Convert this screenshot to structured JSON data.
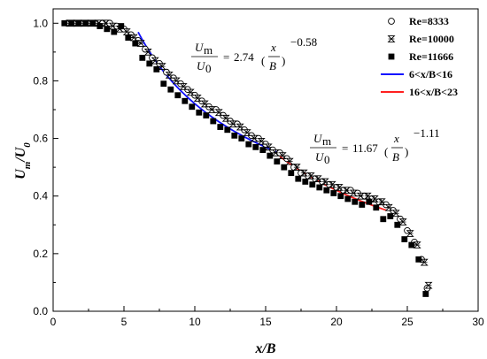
{
  "chart_data": {
    "type": "scatter",
    "xlabel": "x/B",
    "ylabel": "U_m/U_0",
    "xlim": [
      0,
      30
    ],
    "ylim": [
      0,
      1.05
    ],
    "xticks": [
      "0",
      "5",
      "10",
      "15",
      "20",
      "25",
      "30"
    ],
    "yticks": [
      "0.0",
      "0.2",
      "0.4",
      "0.6",
      "0.8",
      "1.0"
    ],
    "grid": false,
    "legend_position": "top-right",
    "series": [
      {
        "name": "Re=8333",
        "marker": "open-circle",
        "color": "#000000",
        "x": [
          1.0,
          1.5,
          2.0,
          2.5,
          3.0,
          3.5,
          4.0,
          4.5,
          5.0,
          5.5,
          6.0,
          6.5,
          7.0,
          7.5,
          8.0,
          8.5,
          9.0,
          9.5,
          10.0,
          10.5,
          11.0,
          11.5,
          12.0,
          12.5,
          13.0,
          13.5,
          14.0,
          14.5,
          15.0,
          15.5,
          16.0,
          16.5,
          17.0,
          17.5,
          18.0,
          18.5,
          19.0,
          19.5,
          20.0,
          20.5,
          21.0,
          21.5,
          22.0,
          22.5,
          23.0,
          23.5,
          24.0,
          24.5,
          25.0,
          25.5,
          26.0,
          26.4
        ],
        "y": [
          1.0,
          1.0,
          1.0,
          1.0,
          1.0,
          1.0,
          1.0,
          0.99,
          0.98,
          0.96,
          0.94,
          0.91,
          0.88,
          0.86,
          0.83,
          0.81,
          0.79,
          0.77,
          0.75,
          0.73,
          0.71,
          0.7,
          0.68,
          0.66,
          0.65,
          0.63,
          0.61,
          0.6,
          0.58,
          0.56,
          0.55,
          0.53,
          0.5,
          0.48,
          0.47,
          0.46,
          0.45,
          0.44,
          0.43,
          0.42,
          0.42,
          0.41,
          0.4,
          0.39,
          0.38,
          0.37,
          0.35,
          0.32,
          0.28,
          0.24,
          0.18,
          0.08
        ]
      },
      {
        "name": "Re=10000",
        "marker": "hourglass",
        "color": "#000000",
        "x": [
          1.2,
          1.7,
          2.2,
          2.7,
          3.2,
          3.7,
          4.2,
          4.7,
          5.2,
          5.7,
          6.2,
          6.7,
          7.2,
          7.7,
          8.2,
          8.7,
          9.2,
          9.7,
          10.2,
          10.7,
          11.2,
          11.7,
          12.2,
          12.7,
          13.2,
          13.7,
          14.2,
          14.7,
          15.2,
          15.7,
          16.2,
          16.7,
          17.2,
          17.7,
          18.2,
          18.7,
          19.2,
          19.7,
          20.2,
          20.7,
          21.2,
          21.7,
          22.2,
          22.7,
          23.2,
          23.7,
          24.2,
          24.7,
          25.2,
          25.7,
          26.2,
          26.5
        ],
        "y": [
          1.0,
          1.0,
          1.0,
          1.0,
          1.0,
          1.0,
          0.99,
          0.98,
          0.97,
          0.95,
          0.93,
          0.9,
          0.87,
          0.85,
          0.82,
          0.8,
          0.78,
          0.76,
          0.74,
          0.72,
          0.7,
          0.69,
          0.67,
          0.65,
          0.64,
          0.62,
          0.6,
          0.59,
          0.57,
          0.55,
          0.54,
          0.52,
          0.5,
          0.48,
          0.47,
          0.46,
          0.45,
          0.44,
          0.43,
          0.42,
          0.41,
          0.4,
          0.4,
          0.39,
          0.38,
          0.36,
          0.34,
          0.31,
          0.27,
          0.23,
          0.17,
          0.09
        ]
      },
      {
        "name": "Re=11666",
        "marker": "filled-square",
        "color": "#000000",
        "x": [
          0.8,
          1.3,
          1.8,
          2.3,
          2.8,
          3.3,
          3.8,
          4.3,
          4.8,
          5.3,
          5.8,
          6.3,
          6.8,
          7.3,
          7.8,
          8.3,
          8.8,
          9.3,
          9.8,
          10.3,
          10.8,
          11.3,
          11.8,
          12.3,
          12.8,
          13.3,
          13.8,
          14.3,
          14.8,
          15.3,
          15.8,
          16.3,
          16.8,
          17.3,
          17.8,
          18.3,
          18.8,
          19.3,
          19.8,
          20.3,
          20.8,
          21.3,
          21.8,
          22.3,
          22.8,
          23.3,
          23.8,
          24.3,
          24.8,
          25.3,
          25.8,
          26.3
        ],
        "y": [
          1.0,
          1.0,
          1.0,
          1.0,
          1.0,
          0.99,
          0.98,
          0.97,
          0.99,
          0.95,
          0.93,
          0.88,
          0.86,
          0.84,
          0.79,
          0.77,
          0.75,
          0.73,
          0.71,
          0.69,
          0.68,
          0.66,
          0.64,
          0.63,
          0.61,
          0.6,
          0.58,
          0.57,
          0.56,
          0.54,
          0.52,
          0.5,
          0.48,
          0.46,
          0.45,
          0.44,
          0.43,
          0.42,
          0.41,
          0.4,
          0.39,
          0.38,
          0.37,
          0.38,
          0.36,
          0.32,
          0.33,
          0.3,
          0.25,
          0.23,
          0.18,
          0.06
        ]
      }
    ],
    "fits": [
      {
        "name": "6<x/B<16",
        "color": "#1010ff",
        "coef": 2.74,
        "exp": -0.58,
        "xrange": [
          6,
          16
        ]
      },
      {
        "name": "16<x/B<23",
        "color": "#ff2020",
        "coef": 11.67,
        "exp": -1.11,
        "xrange": [
          16,
          23.5
        ]
      }
    ],
    "annotations": [
      {
        "id": "eq1",
        "coef": "2.74",
        "exp": "−0.58",
        "near_x": 7.5,
        "near_y": 0.88
      },
      {
        "id": "eq2",
        "coef": "11.67",
        "exp": "−1.11",
        "near_x": 17.6,
        "near_y": 0.59
      }
    ]
  }
}
